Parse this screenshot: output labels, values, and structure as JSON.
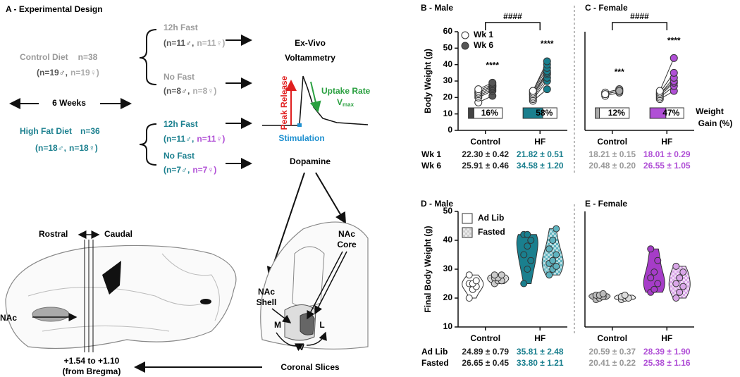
{
  "design": {
    "title": "A - Experimental Design",
    "duration": "6 Weeks",
    "diets": [
      {
        "name": "Control Diet",
        "n": "n=38",
        "male": "(n=19♂,",
        "female": "n=19♀)",
        "groups": [
          {
            "name": "12h Fast",
            "male": "(n=11♂,",
            "female": "n=11♀)"
          },
          {
            "name": "No Fast",
            "male": "(n=8♂,",
            "female": "n=8♀)"
          }
        ]
      },
      {
        "name": "High Fat Diet",
        "n": "n=36",
        "male": "(n=18♂,",
        "female": "n=18♀)",
        "groups": [
          {
            "name": "12h Fast",
            "male": "(n=11♂,",
            "female": "n=11♀)"
          },
          {
            "name": "No Fast",
            "male": "(n=7♂,",
            "female": "n=7♀)"
          }
        ]
      }
    ],
    "method": [
      "Ex-Vivo",
      "Voltammetry"
    ],
    "trace": {
      "peak": "Peak Release",
      "uptake": "Uptake Rate",
      "vmax": "V",
      "vmax_sub": "max",
      "stimulation": "Stimulation"
    },
    "dopamine": "Dopamine",
    "orientation": [
      "Rostral",
      "Caudal"
    ],
    "region": "NAc",
    "coronal": {
      "core": [
        "NAc",
        "Core"
      ],
      "shell": [
        "NAc",
        "Shell"
      ],
      "m": "M",
      "l": "L",
      "v": "V"
    },
    "bregma": [
      "+1.54 to +1.10",
      "(from Bregma)"
    ],
    "slices": "Coronal Slices"
  },
  "chart_data": [
    {
      "type": "paired-dot",
      "title": "B - Male",
      "ylabel": "Body Weight (g)",
      "ylim": [
        0,
        60
      ],
      "yticks": [
        0,
        10,
        20,
        30,
        40,
        50,
        60
      ],
      "categories": [
        "Control",
        "HF"
      ],
      "legend": true,
      "series": [
        {
          "name": "Wk 1",
          "colors": [
            "#ffffff",
            "#ffffff"
          ],
          "values": [
            [
              17,
              20,
              21,
              22,
              23,
              23,
              24,
              25
            ],
            [
              18,
              19,
              20,
              21,
              22,
              22,
              23,
              24,
              24
            ]
          ]
        },
        {
          "name": "Wk 6",
          "colors": [
            "#555555",
            "#1a7f8e"
          ],
          "values": [
            [
              21,
              24,
              25,
              26,
              27,
              27,
              28,
              29
            ],
            [
              25,
              30,
              32,
              34,
              35,
              36,
              38,
              40,
              42
            ]
          ]
        }
      ],
      "significance": [
        "****",
        "****"
      ],
      "bracket": "####",
      "gain": {
        "colors": [
          "#444444",
          "#1a7f8e"
        ],
        "values": [
          16,
          58
        ],
        "value_labels": [
          "16%",
          "58%"
        ]
      },
      "stats": {
        "text_colors": [
          "#222222",
          "#1a7f8e"
        ],
        "rows": [
          {
            "label": "Wk 1",
            "cells": [
              "22.30 ± 0.42",
              "21.82 ± 0.51"
            ]
          },
          {
            "label": "Wk 6",
            "cells": [
              "25.91 ± 0.46",
              "34.58 ± 1.20"
            ]
          }
        ]
      }
    },
    {
      "type": "paired-dot",
      "title": "C - Female",
      "ylim": [
        0,
        60
      ],
      "categories": [
        "Control",
        "HF"
      ],
      "series": [
        {
          "colors": [
            "#ffffff",
            "#ffffff"
          ],
          "values": [
            [
              21,
              22,
              22,
              23,
              23,
              22
            ],
            [
              19,
              20,
              21,
              22,
              22,
              23,
              24
            ]
          ]
        },
        {
          "colors": [
            "#aaaaaa",
            "#b04fd6"
          ],
          "values": [
            [
              23,
              24,
              24,
              25,
              25,
              24
            ],
            [
              24,
              27,
              29,
              30,
              32,
              35,
              44
            ]
          ]
        }
      ],
      "significance": [
        "***",
        "****"
      ],
      "bracket": "####",
      "gain": {
        "colors": [
          "#aaaaaa",
          "#b04fd6"
        ],
        "values": [
          12,
          47
        ],
        "value_labels": [
          "12%",
          "47%"
        ]
      },
      "gain_label": [
        "Weight",
        "Gain (%)"
      ],
      "stats": {
        "text_colors": [
          "#999999",
          "#b04fd6"
        ],
        "rows": [
          {
            "cells": [
              "18.21 ± 0.15",
              "18.01 ± 0.29"
            ]
          },
          {
            "cells": [
              "20.48 ± 0.20",
              "26.55 ± 1.05"
            ]
          }
        ]
      }
    },
    {
      "type": "violin",
      "title": "D - Male",
      "ylabel": "Final Body Weight (g)",
      "ylim": [
        10,
        50
      ],
      "yticks": [
        10,
        20,
        30,
        40,
        50
      ],
      "categories": [
        "Control",
        "HF"
      ],
      "legend": true,
      "series": [
        {
          "name": "Ad Lib",
          "fill": "solid",
          "colors": [
            "#ffffff",
            "#1a7f8e"
          ],
          "values": [
            [
              20,
              23,
              24,
              25,
              25,
              26,
              28
            ],
            [
              25,
              30,
              33,
              35,
              38,
              40,
              42,
              42
            ]
          ]
        },
        {
          "name": "Fasted",
          "fill": "checker",
          "colors": [
            "#cccccc",
            "#5fb3bf"
          ],
          "values": [
            [
              25,
              26,
              26,
              27,
              27,
              28,
              28
            ],
            [
              28,
              30,
              31,
              32,
              33,
              35,
              37,
              40,
              44
            ]
          ]
        }
      ],
      "stats": {
        "text_colors": [
          "#222222",
          "#1a7f8e"
        ],
        "rows": [
          {
            "label": "Ad Lib",
            "cells": [
              "24.89 ± 0.79",
              "35.81 ± 2.48"
            ]
          },
          {
            "label": "Fasted",
            "cells": [
              "26.65 ± 0.45",
              "33.80 ± 1.21"
            ]
          }
        ]
      }
    },
    {
      "type": "violin",
      "title": "E - Female",
      "ylim": [
        10,
        50
      ],
      "categories": [
        "Control",
        "HF"
      ],
      "series": [
        {
          "fill": "solid",
          "colors": [
            "#bbbbbb",
            "#a63cc8"
          ],
          "values": [
            [
              19.5,
              20,
              20.5,
              21,
              21,
              21.5
            ],
            [
              22,
              23,
              25,
              27,
              29,
              33,
              37
            ]
          ]
        },
        {
          "fill": "checker",
          "colors": [
            "#dddddd",
            "#d9a6e8"
          ],
          "values": [
            [
              19.5,
              20,
              20,
              20.5,
              21
            ],
            [
              20,
              22,
              24,
              25,
              27,
              29,
              31
            ]
          ]
        }
      ],
      "stats": {
        "text_colors": [
          "#999999",
          "#b04fd6"
        ],
        "rows": [
          {
            "cells": [
              "20.59 ± 0.37",
              "28.39 ± 1.90"
            ]
          },
          {
            "cells": [
              "20.41 ± 0.22",
              "25.38 ± 1.16"
            ]
          }
        ]
      }
    }
  ]
}
